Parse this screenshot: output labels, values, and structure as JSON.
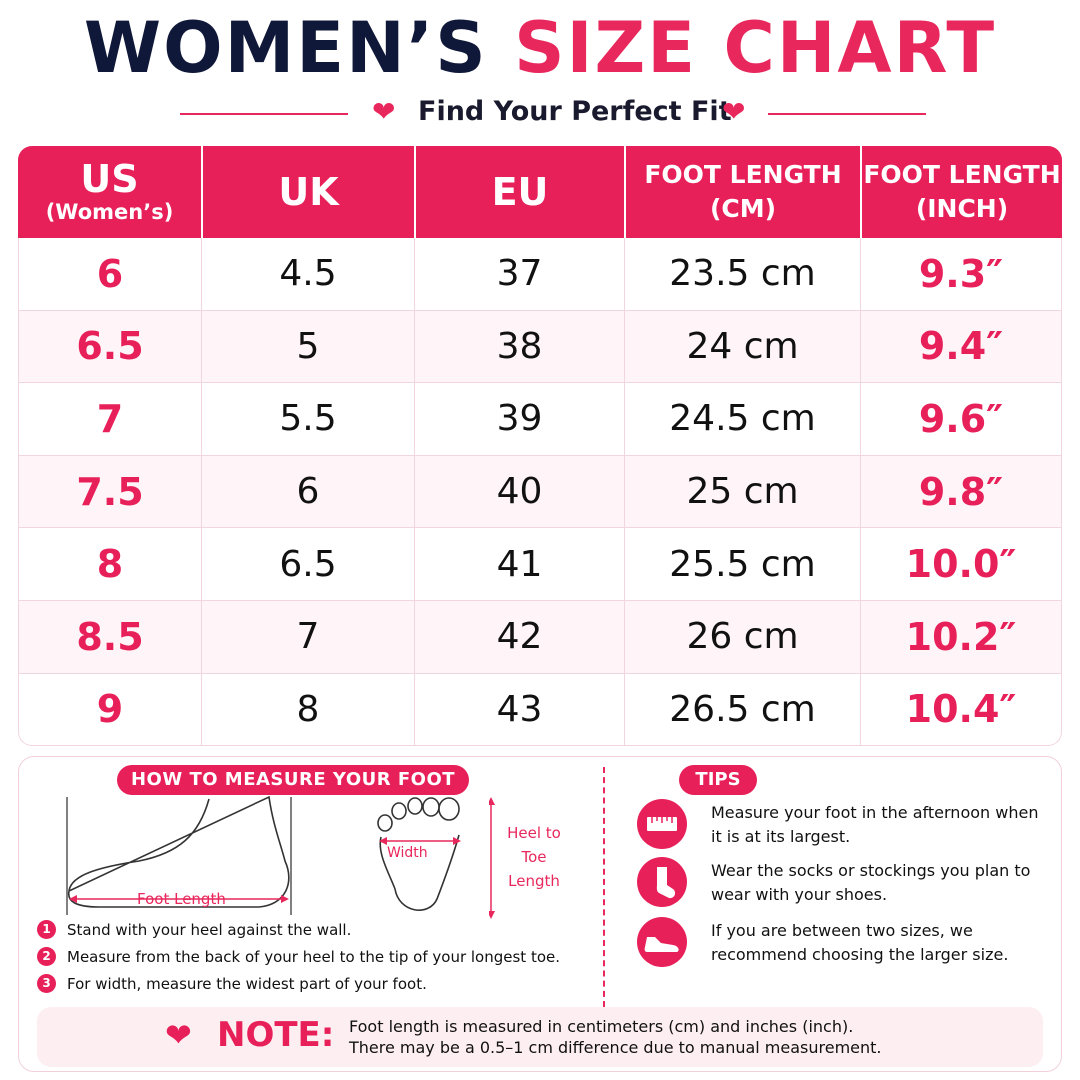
{
  "header": {
    "title_dark": "WOMEN’S",
    "title_pink": "SIZE CHART",
    "subtitle": "Find Your Perfect Fit",
    "heart_icon": "heart-icon"
  },
  "table": {
    "headers": {
      "us": "US",
      "us_sub": "(Women’s)",
      "uk": "UK",
      "eu": "EU",
      "cm_line1": "FOOT LENGTH",
      "cm_line2": "(CM)",
      "inch_line1": "FOOT LENGTH",
      "inch_line2": "(INCH)"
    },
    "rows": [
      {
        "us": "6",
        "uk": "4.5",
        "eu": "37",
        "cm": "23.5 cm",
        "inch": "9.3″"
      },
      {
        "us": "6.5",
        "uk": "5",
        "eu": "38",
        "cm": "24 cm",
        "inch": "9.4″"
      },
      {
        "us": "7",
        "uk": "5.5",
        "eu": "39",
        "cm": "24.5 cm",
        "inch": "9.6″"
      },
      {
        "us": "7.5",
        "uk": "6",
        "eu": "40",
        "cm": "25 cm",
        "inch": "9.8″"
      },
      {
        "us": "8",
        "uk": "6.5",
        "eu": "41",
        "cm": "25.5 cm",
        "inch": "10.0″"
      },
      {
        "us": "8.5",
        "uk": "7",
        "eu": "42",
        "cm": "26 cm",
        "inch": "10.2″"
      },
      {
        "us": "9",
        "uk": "8",
        "eu": "43",
        "cm": "26.5 cm",
        "inch": "10.4″"
      }
    ]
  },
  "measure": {
    "heading": "HOW TO MEASURE YOUR FOOT",
    "foot_length_label": "Foot Length",
    "width_label": "Width",
    "heel_to_toe_label": "Heel to Toe Length",
    "steps": [
      {
        "num": "1",
        "text": "Stand with your heel against the wall."
      },
      {
        "num": "2",
        "text": "Measure from the back of your heel to the tip of your longest toe."
      },
      {
        "num": "3",
        "text": "For width, measure the widest part of your foot."
      }
    ]
  },
  "tips": {
    "heading": "TIPS",
    "items": [
      {
        "icon": "ruler-icon",
        "text": "Measure your foot in the afternoon when it is at its largest."
      },
      {
        "icon": "sock-icon",
        "text": "Wear the socks or stockings you plan to wear with your shoes."
      },
      {
        "icon": "shoe-icon",
        "text": "If you are between two sizes, we recommend choosing the larger size."
      }
    ]
  },
  "note": {
    "label": "NOTE:",
    "line1": "Foot length is measured in centimeters (cm) and inches (inch).",
    "line2": "There may be a 0.5–1 cm difference due to manual measurement."
  },
  "colors": {
    "accent": "#e8205a",
    "navy": "#0f1838",
    "row_alt": "#fff4f7",
    "note_bg": "#fdeef2"
  }
}
